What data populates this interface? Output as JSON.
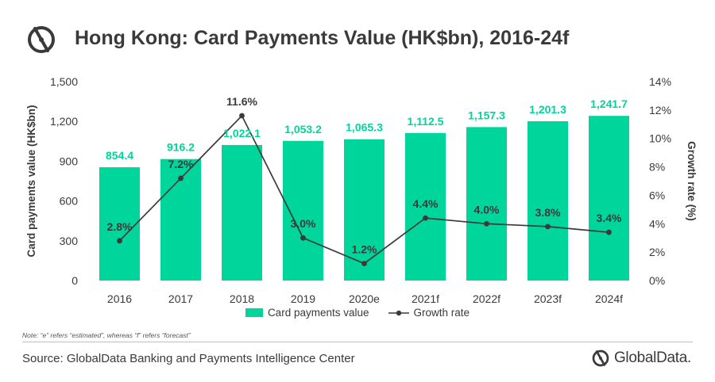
{
  "header": {
    "title": "Hong Kong: Card Payments Value (HK$bn), 2016-24f"
  },
  "colors": {
    "bar": "#00d59c",
    "bar_label": "#00d59c",
    "line": "#3a3a3a",
    "text": "#3a3a3a"
  },
  "chart_data": {
    "type": "bar",
    "categories": [
      "2016",
      "2017",
      "2018",
      "2019",
      "2020e",
      "2021f",
      "2022f",
      "2023f",
      "2024f"
    ],
    "series": [
      {
        "name": "Card payments value",
        "type": "bar",
        "axis": "left",
        "values": [
          854.4,
          916.2,
          1022.1,
          1053.2,
          1065.3,
          1112.5,
          1157.3,
          1201.3,
          1241.7
        ],
        "labels": [
          "854.4",
          "916.2",
          "1,022.1",
          "1,053.2",
          "1,065.3",
          "1,112.5",
          "1,157.3",
          "1,201.3",
          "1,241.7"
        ]
      },
      {
        "name": "Growth rate",
        "type": "line",
        "axis": "right",
        "values": [
          2.8,
          7.2,
          11.6,
          3.0,
          1.2,
          4.4,
          4.0,
          3.8,
          3.4
        ],
        "labels": [
          "2.8%",
          "7.2%",
          "11.6%",
          "3.0%",
          "1.2%",
          "4.4%",
          "4.0%",
          "3.8%",
          "3.4%"
        ]
      }
    ],
    "ylabel": "Card payments value (HK$bn)",
    "y2label": "Growth rate (%)",
    "ylim": [
      0,
      1500
    ],
    "y2lim": [
      0,
      14
    ],
    "yticks": [
      "0",
      "300",
      "600",
      "900",
      "1,200",
      "1,500"
    ],
    "y2ticks": [
      "0%",
      "2%",
      "4%",
      "6%",
      "8%",
      "10%",
      "12%",
      "14%"
    ],
    "grid": false,
    "legend_position": "bottom"
  },
  "legend": {
    "bar_label": "Card payments value",
    "line_label": "Growth rate"
  },
  "footer": {
    "note": "Note: “e” refers “estimated”, whereas “f” refers “forecast”",
    "source": "Source: GlobalData Banking and Payments Intelligence Center",
    "brand": "GlobalData."
  }
}
